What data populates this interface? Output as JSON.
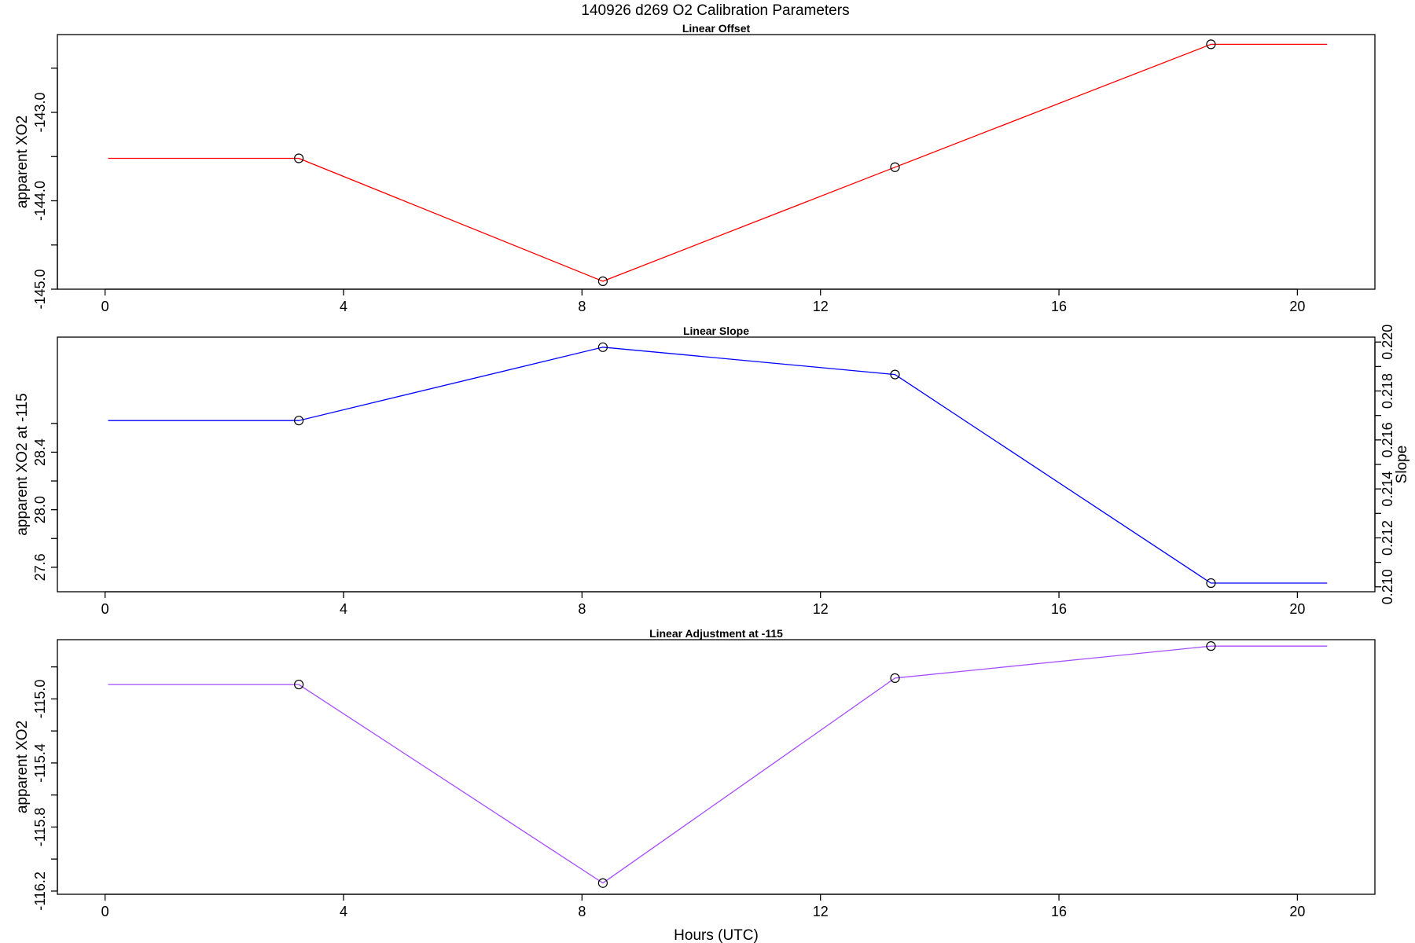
{
  "page": {
    "title": "140926   d269   O2 Calibration Parameters"
  },
  "chart_data": [
    {
      "type": "line",
      "title": "Linear Offset",
      "ylabel": "apparent XO2",
      "xlabel": "",
      "color": "#ff0000",
      "xlim": [
        -0.8,
        21.3
      ],
      "ylim": [
        -145.0,
        -142.12
      ],
      "xticks": [
        0,
        4,
        8,
        12,
        16,
        20
      ],
      "yticks": [
        -145.0,
        -144.5,
        -144.0,
        -143.5,
        -143.0,
        -142.5
      ],
      "ytick_labels": [
        "-145.0",
        "",
        "-144.0",
        "",
        "-143.0",
        ""
      ],
      "x": [
        0.05,
        3.25,
        8.35,
        13.25,
        18.55,
        20.5
      ],
      "y": [
        -143.52,
        -143.52,
        -144.91,
        -143.62,
        -142.23,
        -142.23
      ],
      "markers": [
        false,
        true,
        true,
        true,
        true,
        false
      ],
      "grid": false
    },
    {
      "type": "line",
      "title": "Linear Slope",
      "ylabel": "apparent XO2 at -115",
      "y2label": "Slope",
      "xlabel": "",
      "color": "#0000ff",
      "xlim": [
        -0.8,
        21.3
      ],
      "ylim": [
        27.43,
        29.2
      ],
      "xticks": [
        0,
        4,
        8,
        12,
        16,
        20
      ],
      "yticks": [
        27.6,
        27.8,
        28.0,
        28.2,
        28.4,
        28.6
      ],
      "ytick_labels": [
        "27.6",
        "",
        "28.0",
        "",
        "28.4",
        ""
      ],
      "y2lim": [
        0.2098,
        0.2202
      ],
      "y2ticks": [
        0.21,
        0.211,
        0.212,
        0.213,
        0.214,
        0.215,
        0.216,
        0.217,
        0.218,
        0.219,
        0.22
      ],
      "y2tick_labels": [
        "0.210",
        "",
        "0.212",
        "",
        "0.214",
        "",
        "0.216",
        "",
        "0.218",
        "",
        "0.220"
      ],
      "x": [
        0.05,
        3.25,
        8.35,
        13.25,
        18.55,
        20.5
      ],
      "y": [
        28.62,
        28.62,
        29.13,
        28.94,
        27.49,
        27.49
      ],
      "markers": [
        false,
        true,
        true,
        true,
        true,
        false
      ],
      "grid": false
    },
    {
      "type": "line",
      "title": "Linear Adjustment at -115",
      "ylabel": "apparent XO2",
      "xlabel": "Hours (UTC)",
      "color": "#a64dff",
      "xlim": [
        -0.8,
        21.3
      ],
      "ylim": [
        -116.22,
        -114.63
      ],
      "xticks": [
        0,
        4,
        8,
        12,
        16,
        20
      ],
      "yticks": [
        -116.2,
        -116.0,
        -115.8,
        -115.6,
        -115.4,
        -115.2,
        -115.0,
        -114.8
      ],
      "ytick_labels": [
        "-116.2",
        "",
        "-115.8",
        "",
        "-115.4",
        "",
        "-115.0",
        ""
      ],
      "x": [
        0.05,
        3.25,
        8.35,
        13.25,
        18.55,
        20.5
      ],
      "y": [
        -114.91,
        -114.91,
        -116.15,
        -114.87,
        -114.67,
        -114.67
      ],
      "markers": [
        false,
        true,
        true,
        true,
        true,
        false
      ],
      "grid": false
    }
  ]
}
